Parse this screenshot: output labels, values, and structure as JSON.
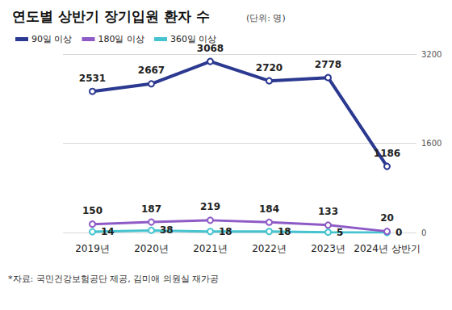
{
  "chart_data": {
    "type": "line",
    "title": "연도별 상반기 장기입원 환자 수",
    "subtitle": "(단위: 명)",
    "source": "*자료: 국민건강보험공단 제공, 김미애 의원실 재가공",
    "categories": [
      "2019년",
      "2020년",
      "2021년",
      "2022년",
      "2023년",
      "2024년 상반기"
    ],
    "series": [
      {
        "name": "90일 이상",
        "color": "#2b3990",
        "values": [
          2531,
          2667,
          3068,
          2720,
          2778,
          1186
        ]
      },
      {
        "name": "180일 이상",
        "color": "#8e5bc6",
        "values": [
          150,
          187,
          219,
          184,
          133,
          20
        ]
      },
      {
        "name": "360일 이상",
        "color": "#45c3cf",
        "values": [
          14,
          38,
          18,
          18,
          5,
          0
        ]
      }
    ],
    "ylim": [
      0,
      3200
    ],
    "yticks": [
      0,
      1600,
      3200
    ],
    "grid": true,
    "legend": "top-left",
    "data_labels": true,
    "marker": "circle"
  }
}
